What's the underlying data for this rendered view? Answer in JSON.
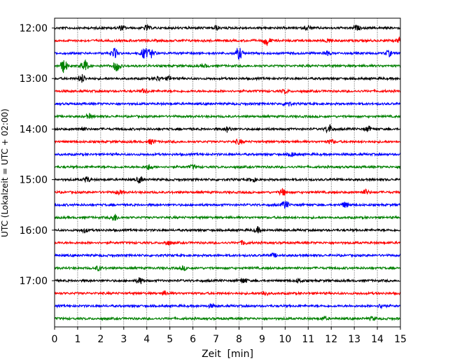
{
  "chart_data": {
    "type": "line",
    "title": "",
    "xlabel": "Zeit  [min]",
    "ylabel": "UTC (Lokalzeit = UTC + 02:00)",
    "xlim": [
      0,
      15
    ],
    "x_ticks": [
      "0",
      "1",
      "2",
      "3",
      "4",
      "5",
      "6",
      "7",
      "8",
      "9",
      "10",
      "11",
      "12",
      "13",
      "14",
      "15"
    ],
    "y_ticks": [
      "12:00",
      "13:00",
      "14:00",
      "15:00",
      "16:00",
      "17:00"
    ],
    "grid": "vertical dotted lines at each minute",
    "trace_interval_minutes": 15,
    "trace_start": "12:00",
    "trace_end": "17:45",
    "color_cycle": [
      "#000000",
      "#ff0000",
      "#0000ff",
      "#008000"
    ],
    "series": [
      {
        "start": "12:00",
        "color": "#000000",
        "events": [
          [
            2.9,
            0.3
          ],
          [
            4.0,
            0.35
          ],
          [
            7.0,
            0.3
          ],
          [
            11.0,
            0.3
          ],
          [
            13.1,
            0.3
          ]
        ]
      },
      {
        "start": "12:15",
        "color": "#ff0000",
        "events": [
          [
            9.2,
            0.7
          ],
          [
            11.9,
            0.3
          ],
          [
            15.0,
            0.6
          ]
        ]
      },
      {
        "start": "12:30",
        "color": "#0000ff",
        "events": [
          [
            2.6,
            0.7
          ],
          [
            3.9,
            0.8
          ],
          [
            4.2,
            0.6
          ],
          [
            8.0,
            0.9
          ],
          [
            11.8,
            0.3
          ],
          [
            14.5,
            0.4
          ]
        ]
      },
      {
        "start": "12:45",
        "color": "#008000",
        "events": [
          [
            0.4,
            1.0
          ],
          [
            1.3,
            0.9
          ],
          [
            2.7,
            0.8
          ],
          [
            6.5,
            0.2
          ]
        ]
      },
      {
        "start": "13:00",
        "color": "#000000",
        "events": [
          [
            1.2,
            0.6
          ],
          [
            4.5,
            0.3
          ],
          [
            5.0,
            0.3
          ]
        ]
      },
      {
        "start": "13:15",
        "color": "#ff0000",
        "events": [
          [
            3.9,
            0.3
          ],
          [
            10.0,
            0.25
          ]
        ]
      },
      {
        "start": "13:30",
        "color": "#0000ff",
        "events": [
          [
            10.1,
            0.4
          ]
        ]
      },
      {
        "start": "13:45",
        "color": "#008000",
        "events": [
          [
            1.5,
            0.3
          ]
        ]
      },
      {
        "start": "14:00",
        "color": "#000000",
        "events": [
          [
            1.2,
            0.3
          ],
          [
            7.5,
            0.4
          ],
          [
            11.9,
            0.7
          ],
          [
            13.6,
            0.4
          ]
        ]
      },
      {
        "start": "14:15",
        "color": "#ff0000",
        "events": [
          [
            4.2,
            0.35
          ],
          [
            8.0,
            0.35
          ],
          [
            12.0,
            0.3
          ]
        ]
      },
      {
        "start": "14:30",
        "color": "#0000ff",
        "events": [
          [
            10.3,
            0.3
          ]
        ]
      },
      {
        "start": "14:45",
        "color": "#008000",
        "events": [
          [
            4.1,
            0.4
          ],
          [
            6.0,
            0.25
          ]
        ]
      },
      {
        "start": "15:00",
        "color": "#000000",
        "events": [
          [
            1.4,
            0.4
          ],
          [
            3.7,
            0.5
          ],
          [
            8.6,
            0.3
          ]
        ]
      },
      {
        "start": "15:15",
        "color": "#ff0000",
        "events": [
          [
            2.8,
            0.3
          ],
          [
            9.9,
            0.5
          ],
          [
            13.5,
            0.35
          ]
        ]
      },
      {
        "start": "15:30",
        "color": "#0000ff",
        "events": [
          [
            10.0,
            0.6
          ],
          [
            12.6,
            0.4
          ]
        ]
      },
      {
        "start": "15:45",
        "color": "#008000",
        "events": [
          [
            2.6,
            0.5
          ]
        ]
      },
      {
        "start": "16:00",
        "color": "#000000",
        "events": [
          [
            1.3,
            0.3
          ],
          [
            8.8,
            0.4
          ]
        ]
      },
      {
        "start": "16:15",
        "color": "#ff0000",
        "events": [
          [
            4.9,
            0.35
          ],
          [
            8.2,
            0.3
          ]
        ]
      },
      {
        "start": "16:30",
        "color": "#0000ff",
        "events": [
          [
            9.5,
            0.25
          ]
        ]
      },
      {
        "start": "16:45",
        "color": "#008000",
        "events": [
          [
            1.9,
            0.3
          ],
          [
            5.6,
            0.25
          ]
        ]
      },
      {
        "start": "17:00",
        "color": "#000000",
        "events": [
          [
            3.7,
            0.45
          ],
          [
            8.2,
            0.4
          ],
          [
            10.6,
            0.3
          ]
        ]
      },
      {
        "start": "17:15",
        "color": "#ff0000",
        "events": [
          [
            4.8,
            0.3
          ],
          [
            9.1,
            0.35
          ]
        ]
      },
      {
        "start": "17:30",
        "color": "#0000ff",
        "events": [
          [
            6.8,
            0.25
          ],
          [
            14.2,
            0.3
          ]
        ]
      },
      {
        "start": "17:45",
        "color": "#008000",
        "events": [
          [
            11.7,
            0.25
          ],
          [
            13.8,
            0.25
          ]
        ]
      }
    ]
  }
}
